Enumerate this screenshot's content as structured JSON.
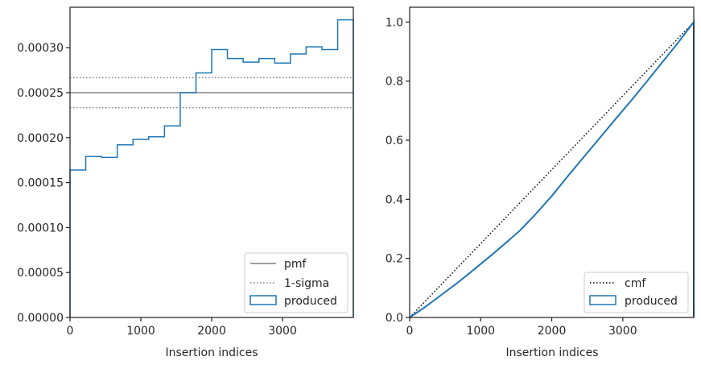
{
  "chart_data": [
    {
      "type": "line",
      "xlabel": "Insertion indices",
      "ylabel": "",
      "xlim": [
        0,
        3999
      ],
      "ylim": [
        0,
        0.000345
      ],
      "xticks": [
        0,
        1000,
        2000,
        3000
      ],
      "xtick_labels": [
        "0",
        "1000",
        "2000",
        "3000"
      ],
      "yticks": [
        0,
        5e-05,
        0.0001,
        0.00015,
        0.0002,
        0.00025,
        0.0003
      ],
      "ytick_labels": [
        "0.00000",
        "0.00005",
        "0.00010",
        "0.00015",
        "0.00020",
        "0.00025",
        "0.00030"
      ],
      "grid": false,
      "legend_position": "lower right",
      "legend": [
        "pmf",
        "1-sigma",
        "produced"
      ],
      "pmf": {
        "name": "pmf",
        "value": 0.00025,
        "color": "#808080"
      },
      "sigma": {
        "name": "1-sigma",
        "lower": 0.0002333,
        "upper": 0.0002667,
        "color": "#808080"
      },
      "produced": {
        "name": "produced",
        "color": "#1f77b4",
        "bin_edges": [
          0,
          222,
          444,
          667,
          889,
          1111,
          1333,
          1556,
          1778,
          2000,
          2222,
          2444,
          2667,
          2889,
          3111,
          3333,
          3556,
          3778,
          3999
        ],
        "values": [
          0.000164,
          0.000179,
          0.000178,
          0.000192,
          0.000198,
          0.000201,
          0.000213,
          0.00025,
          0.000272,
          0.000298,
          0.000288,
          0.000284,
          0.000288,
          0.000283,
          0.000293,
          0.000301,
          0.000298,
          0.000331
        ]
      }
    },
    {
      "type": "line",
      "xlabel": "Insertion indices",
      "ylabel": "",
      "xlim": [
        0,
        3999
      ],
      "ylim": [
        0,
        1.05
      ],
      "xticks": [
        0,
        1000,
        2000,
        3000
      ],
      "xtick_labels": [
        "0",
        "1000",
        "2000",
        "3000"
      ],
      "yticks": [
        0,
        0.2,
        0.4,
        0.6,
        0.8,
        1.0
      ],
      "ytick_labels": [
        "0.0",
        "0.2",
        "0.4",
        "0.6",
        "0.8",
        "1.0"
      ],
      "grid": false,
      "legend_position": "lower right",
      "legend": [
        "cmf",
        "produced"
      ],
      "cmf": {
        "name": "cmf",
        "x": [
          0,
          3999
        ],
        "y": [
          0,
          1.0
        ],
        "color": "#000000"
      },
      "produced": {
        "name": "produced",
        "color": "#1f77b4",
        "x": [
          0,
          222,
          444,
          667,
          889,
          1111,
          1333,
          1556,
          1778,
          2000,
          2222,
          2444,
          2667,
          2889,
          3111,
          3333,
          3556,
          3778,
          3999
        ],
        "y": [
          0,
          0.036,
          0.076,
          0.116,
          0.159,
          0.203,
          0.248,
          0.295,
          0.351,
          0.411,
          0.477,
          0.541,
          0.605,
          0.669,
          0.732,
          0.797,
          0.864,
          0.93,
          1.0
        ]
      }
    }
  ]
}
